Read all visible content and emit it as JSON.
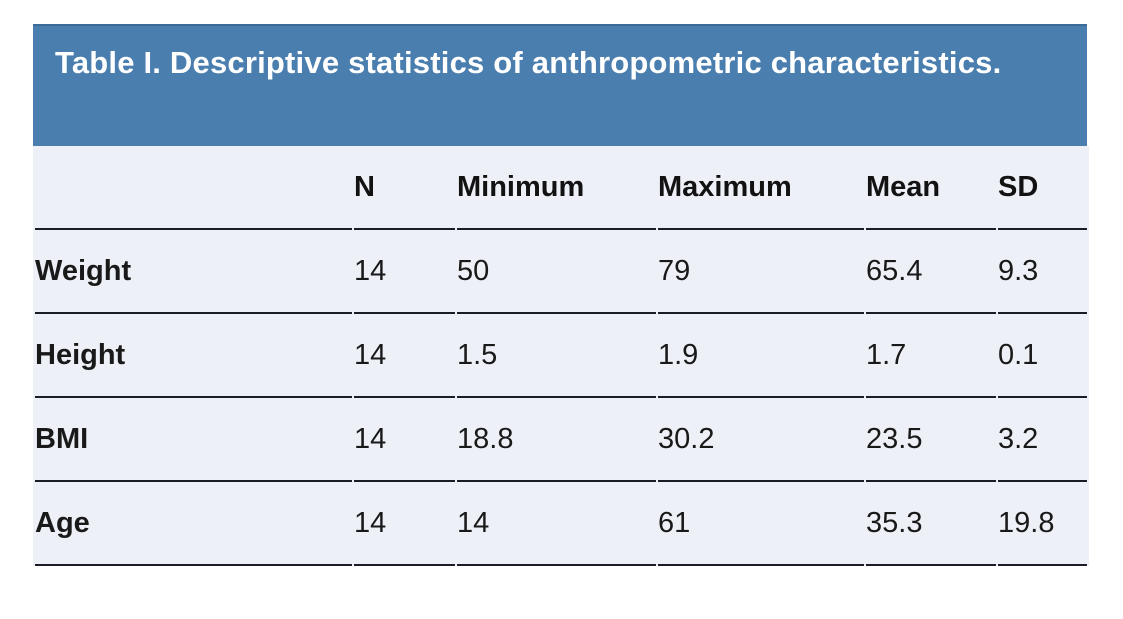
{
  "table": {
    "title": "Table I. Descriptive statistics of anthropometric characteristics.",
    "columns": [
      "",
      "N",
      "Minimum",
      "Maximum",
      "Mean",
      "SD"
    ],
    "rows": [
      {
        "label": "Weight",
        "values": [
          "14",
          "50",
          "79",
          "65.4",
          "9.3"
        ]
      },
      {
        "label": "Height",
        "values": [
          "14",
          "1.5",
          "1.9",
          "1.7",
          "0.1"
        ]
      },
      {
        "label": "BMI",
        "values": [
          "14",
          "18.8",
          "30.2",
          "23.5",
          "3.2"
        ]
      },
      {
        "label": "Age",
        "values": [
          "14",
          "14",
          "61",
          "35.3",
          "19.8"
        ]
      }
    ],
    "colors": {
      "banner_background": "#4a7eae",
      "banner_top_edge": "#3c6b98",
      "table_background": "#edf0f6",
      "row_border": "#1a1c26",
      "title_text": "#ffffff",
      "body_text": "#191919"
    }
  },
  "chart_data": {
    "type": "table",
    "title": "Table I. Descriptive statistics of anthropometric characteristics.",
    "columns": [
      "",
      "N",
      "Minimum",
      "Maximum",
      "Mean",
      "SD"
    ],
    "rows": [
      [
        "Weight",
        14,
        50,
        79,
        65.4,
        9.3
      ],
      [
        "Height",
        14,
        1.5,
        1.9,
        1.7,
        0.1
      ],
      [
        "BMI",
        14,
        18.8,
        30.2,
        23.5,
        3.2
      ],
      [
        "Age",
        14,
        14,
        61,
        35.3,
        19.8
      ]
    ]
  }
}
